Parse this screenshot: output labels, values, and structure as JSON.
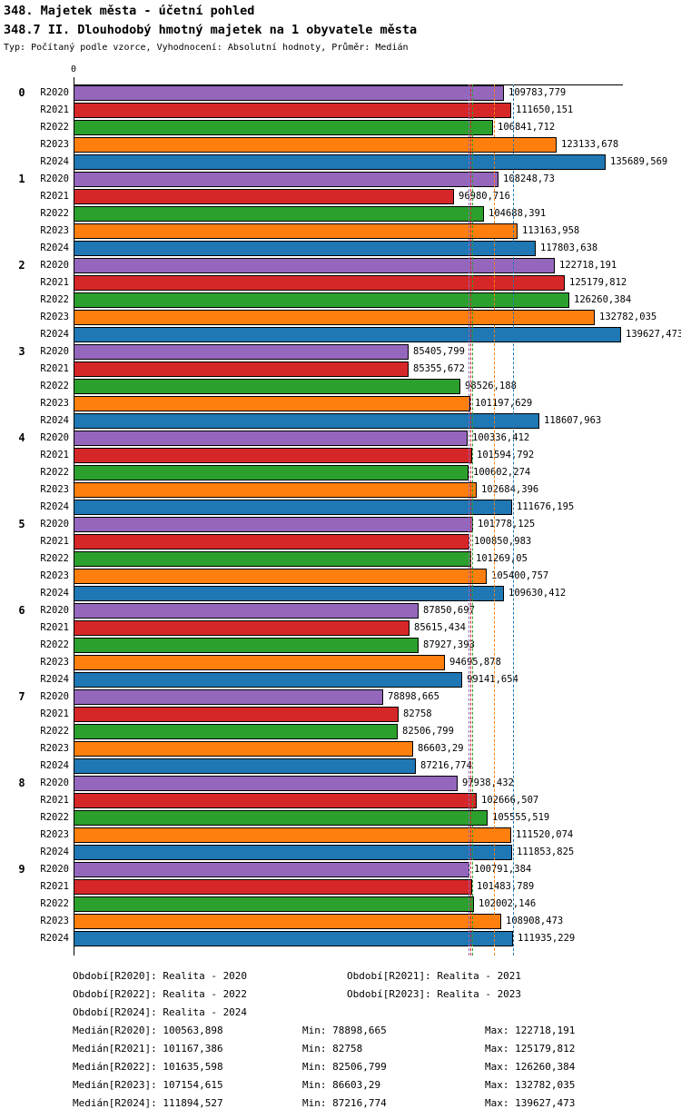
{
  "header": {
    "title_line1": "348. Majetek města - účetní pohled",
    "title_line2": "348.7 II. Dlouhodobý hmotný majetek na 1 obyvatele města",
    "subtitle": "Typ: Počítaný podle vzorce, Vyhodnocení: Absolutní hodnoty, Průměr: Medián"
  },
  "chart_data": {
    "type": "bar",
    "orientation": "horizontal",
    "title": "348.7 II. Dlouhodobý hmotný majetek na 1 obyvatele města",
    "xlabel": "",
    "ylabel": "",
    "xlim": [
      0,
      140000
    ],
    "origin_tick_label": "0",
    "grid": false,
    "legend_position": "bottom",
    "series": [
      "R2020",
      "R2021",
      "R2022",
      "R2023",
      "R2024"
    ],
    "series_colors": [
      "#9467BD",
      "#D62728",
      "#2CA02C",
      "#FF7F0E",
      "#1F77B4"
    ],
    "categories": [
      "0",
      "1",
      "2",
      "3",
      "4",
      "5",
      "6",
      "7",
      "8",
      "9"
    ],
    "groups": [
      {
        "label": "0",
        "values": [
          109783.779,
          111650.151,
          106841.712,
          123133.678,
          135689.569
        ],
        "value_labels": [
          "109783,779",
          "111650,151",
          "106841,712",
          "123133,678",
          "135689,569"
        ]
      },
      {
        "label": "1",
        "values": [
          108248.73,
          96980.716,
          104688.391,
          113163.958,
          117803.638
        ],
        "value_labels": [
          "108248,73",
          "96980,716",
          "104688,391",
          "113163,958",
          "117803,638"
        ]
      },
      {
        "label": "2",
        "values": [
          122718.191,
          125179.812,
          126260.384,
          132782.035,
          139627.473
        ],
        "value_labels": [
          "122718,191",
          "125179,812",
          "126260,384",
          "132782,035",
          "139627,473"
        ]
      },
      {
        "label": "3",
        "values": [
          85405.799,
          85355.672,
          98526.188,
          101197.629,
          118607.963
        ],
        "value_labels": [
          "85405,799",
          "85355,672",
          "98526,188",
          "101197,629",
          "118607,963"
        ]
      },
      {
        "label": "4",
        "values": [
          100336.412,
          101594.792,
          100602.274,
          102684.396,
          111676.195
        ],
        "value_labels": [
          "100336,412",
          "101594,792",
          "100602,274",
          "102684,396",
          "111676,195"
        ]
      },
      {
        "label": "5",
        "values": [
          101778.125,
          100850.983,
          101269.05,
          105400.757,
          109630.412
        ],
        "value_labels": [
          "101778,125",
          "100850,983",
          "101269,05",
          "105400,757",
          "109630,412"
        ]
      },
      {
        "label": "6",
        "values": [
          87850.697,
          85615.434,
          87927.393,
          94695.878,
          99141.654
        ],
        "value_labels": [
          "87850,697",
          "85615,434",
          "87927,393",
          "94695,878",
          "99141,654"
        ]
      },
      {
        "label": "7",
        "values": [
          78898.665,
          82758,
          82506.799,
          86603.29,
          87216.774
        ],
        "value_labels": [
          "78898,665",
          "82758",
          "82506,799",
          "86603,29",
          "87216,774"
        ]
      },
      {
        "label": "8",
        "values": [
          97938.432,
          102666.507,
          105555.519,
          111520.074,
          111853.825
        ],
        "value_labels": [
          "97938,432",
          "102666,507",
          "105555,519",
          "111520,074",
          "111853,825"
        ]
      },
      {
        "label": "9",
        "values": [
          100791.384,
          101483.789,
          102002.146,
          108908.473,
          111935.229
        ],
        "value_labels": [
          "100791,384",
          "101483,789",
          "102002,146",
          "108908,473",
          "111935,229"
        ]
      }
    ],
    "median_lines": {
      "values": [
        100563.898,
        101167.386,
        101635.598,
        107154.615,
        111894.527
      ],
      "colors": [
        "#9467BD",
        "#D62728",
        "#2CA02C",
        "#FF7F0E",
        "#1F77B4"
      ]
    }
  },
  "legend": {
    "period_rows": [
      [
        "Období[R2020]: Realita - 2020",
        "Období[R2021]: Realita - 2021"
      ],
      [
        "Období[R2022]: Realita - 2022",
        "Období[R2023]: Realita - 2023"
      ],
      [
        "Období[R2024]: Realita - 2024"
      ]
    ],
    "stat_rows": [
      {
        "median": "Medián[R2020]: 100563,898",
        "min": "Min: 78898,665",
        "max": "Max: 122718,191"
      },
      {
        "median": "Medián[R2021]: 101167,386",
        "min": "Min: 82758",
        "max": "Max: 125179,812"
      },
      {
        "median": "Medián[R2022]: 101635,598",
        "min": "Min: 82506,799",
        "max": "Max: 126260,384"
      },
      {
        "median": "Medián[R2023]: 107154,615",
        "min": "Min: 86603,29",
        "max": "Max: 132782,035"
      },
      {
        "median": "Medián[R2024]: 111894,527",
        "min": "Min: 87216,774",
        "max": "Max: 139627,473"
      }
    ]
  }
}
